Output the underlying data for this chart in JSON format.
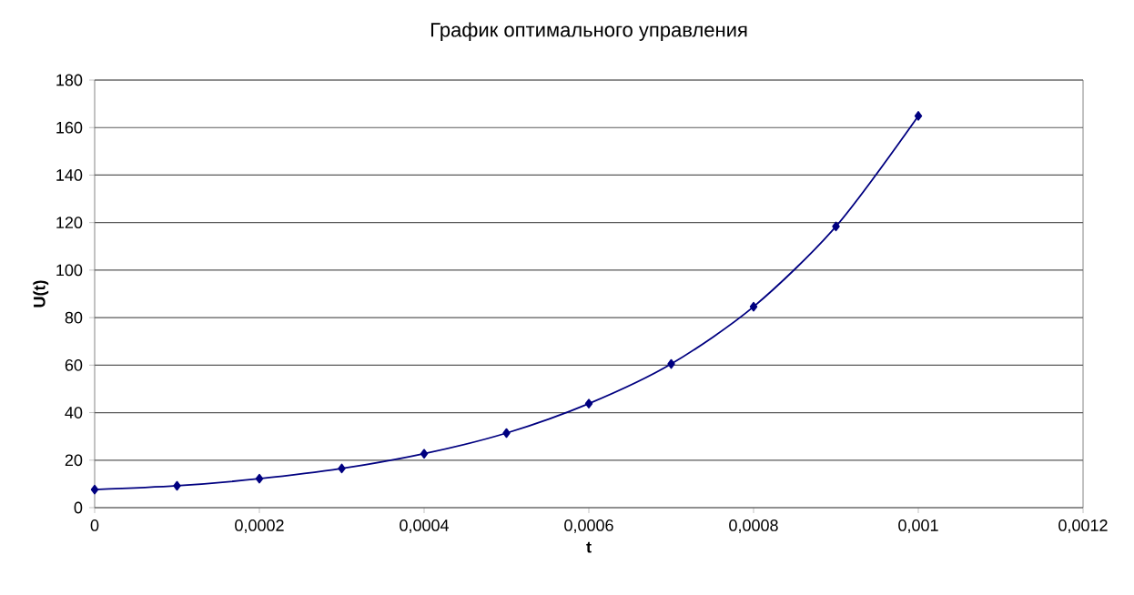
{
  "chart_data": {
    "type": "line",
    "title": "График оптимального управления",
    "xlabel": "t",
    "ylabel": "U(t)",
    "x": [
      0,
      0.0001,
      0.0002,
      0.0003,
      0.0004,
      0.0005,
      0.0006,
      0.0007,
      0.0008,
      0.0009,
      0.001
    ],
    "series": [
      {
        "color": "#000080",
        "values": [
          7.6,
          9.2,
          12.2,
          16.5,
          22.7,
          31.4,
          43.8,
          60.5,
          84.6,
          118.4,
          164.9
        ]
      }
    ],
    "xlim": [
      0,
      0.0012
    ],
    "xticks": [
      0,
      {
        "value": 0.0002,
        "label": "0,0002"
      },
      {
        "value": 0.0004,
        "label": "0,0004"
      },
      {
        "value": 0.0006,
        "label": "0,0006"
      },
      {
        "value": 0.0008,
        "label": "0,0008"
      },
      {
        "value": 0.001,
        "label": "0,001"
      },
      {
        "value": 0.0012,
        "label": "0,0012"
      }
    ],
    "ylim": [
      0,
      180
    ],
    "yticks": [
      0,
      20,
      40,
      60,
      80,
      100,
      120,
      140,
      160,
      180
    ],
    "grid": "y",
    "marker": "diamond",
    "line_style": "solid"
  }
}
